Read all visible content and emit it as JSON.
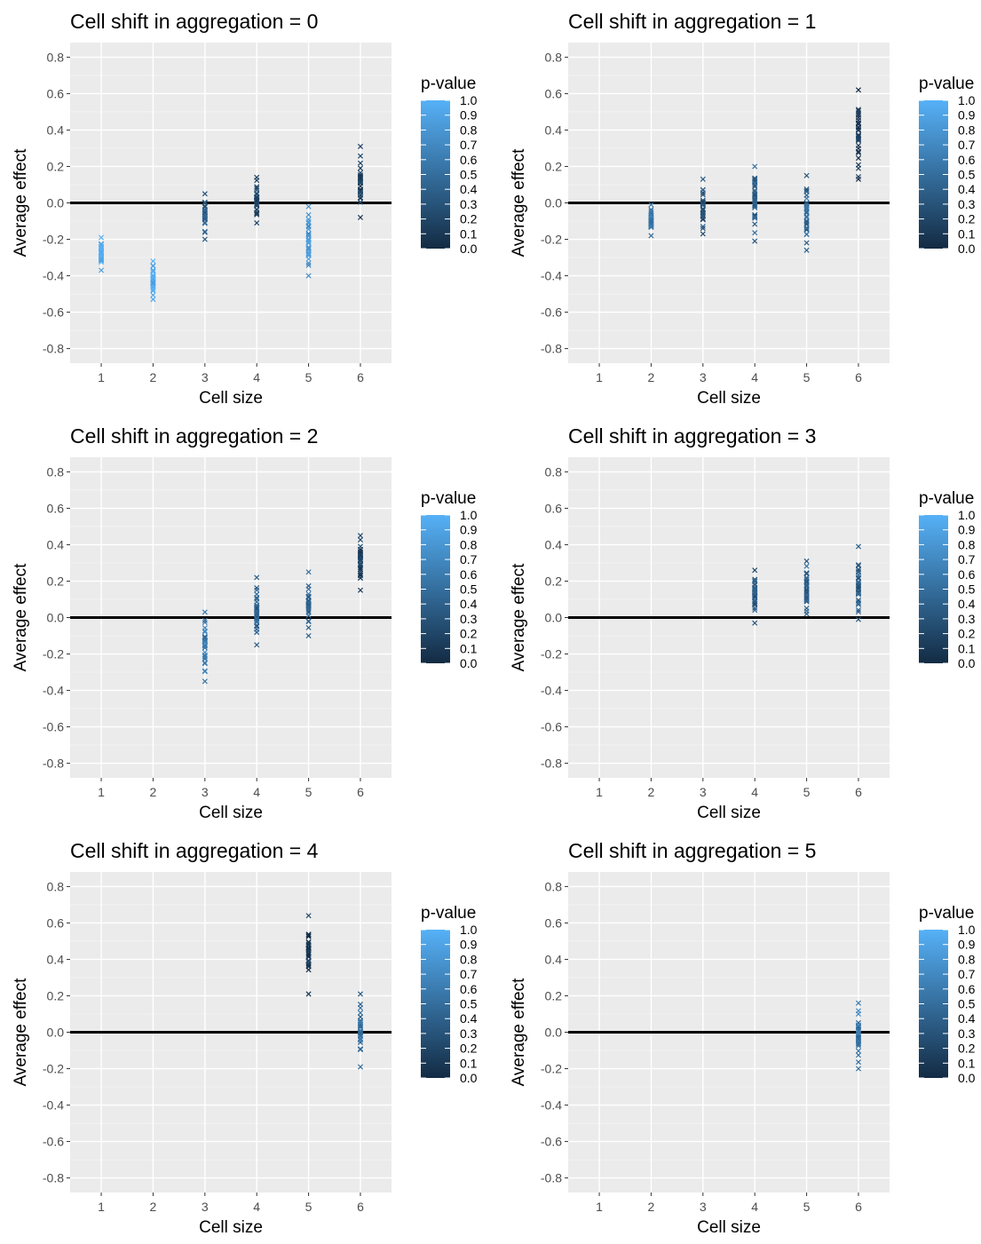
{
  "legend": {
    "title": "p-value",
    "ticks": [
      "1.0",
      "0.9",
      "0.8",
      "0.7",
      "0.6",
      "0.5",
      "0.4",
      "0.3",
      "0.2",
      "0.1",
      "0.0"
    ],
    "color_low": "#132B43",
    "color_high": "#56B1F7"
  },
  "chart_data": [
    {
      "type": "scatter",
      "title": "Cell shift in aggregation = 0",
      "xlabel": "Cell size",
      "ylabel": "Average effect",
      "x_ticks": [
        "1",
        "2",
        "3",
        "4",
        "5",
        "6"
      ],
      "y_ticks": [
        "0.8",
        "0.6",
        "0.4",
        "0.2",
        "0.0",
        "-0.2",
        "-0.4",
        "-0.6",
        "-0.8"
      ],
      "xlim": [
        0.4,
        6.6
      ],
      "ylim": [
        -0.88,
        0.88
      ],
      "hline": 0,
      "groups": [
        {
          "x": 1,
          "min": -0.37,
          "max": -0.19,
          "p": 0.95
        },
        {
          "x": 2,
          "min": -0.53,
          "max": -0.32,
          "p": 0.97
        },
        {
          "x": 3,
          "min": -0.2,
          "max": 0.05,
          "p": 0.4
        },
        {
          "x": 4,
          "min": -0.11,
          "max": 0.14,
          "p": 0.25
        },
        {
          "x": 5,
          "min": -0.4,
          "max": -0.02,
          "p": 0.8
        },
        {
          "x": 6,
          "min": -0.08,
          "max": 0.31,
          "p": 0.15
        }
      ]
    },
    {
      "type": "scatter",
      "title": "Cell shift in aggregation = 1",
      "xlabel": "Cell size",
      "ylabel": "Average effect",
      "x_ticks": [
        "1",
        "2",
        "3",
        "4",
        "5",
        "6"
      ],
      "y_ticks": [
        "0.8",
        "0.6",
        "0.4",
        "0.2",
        "0.0",
        "-0.2",
        "-0.4",
        "-0.6",
        "-0.8"
      ],
      "xlim": [
        0.4,
        6.6
      ],
      "ylim": [
        -0.88,
        0.88
      ],
      "hline": 0,
      "groups": [
        {
          "x": 2,
          "min": -0.18,
          "max": -0.01,
          "p": 0.55
        },
        {
          "x": 3,
          "min": -0.17,
          "max": 0.13,
          "p": 0.3
        },
        {
          "x": 4,
          "min": -0.21,
          "max": 0.2,
          "p": 0.4
        },
        {
          "x": 5,
          "min": -0.26,
          "max": 0.15,
          "p": 0.45
        },
        {
          "x": 6,
          "min": 0.13,
          "max": 0.62,
          "p": 0.08
        }
      ]
    },
    {
      "type": "scatter",
      "title": "Cell shift in aggregation = 2",
      "xlabel": "Cell size",
      "ylabel": "Average effect",
      "x_ticks": [
        "1",
        "2",
        "3",
        "4",
        "5",
        "6"
      ],
      "y_ticks": [
        "0.8",
        "0.6",
        "0.4",
        "0.2",
        "0.0",
        "-0.2",
        "-0.4",
        "-0.6",
        "-0.8"
      ],
      "xlim": [
        0.4,
        6.6
      ],
      "ylim": [
        -0.88,
        0.88
      ],
      "hline": 0,
      "groups": [
        {
          "x": 3,
          "min": -0.35,
          "max": 0.03,
          "p": 0.6
        },
        {
          "x": 4,
          "min": -0.15,
          "max": 0.22,
          "p": 0.4
        },
        {
          "x": 5,
          "min": -0.1,
          "max": 0.25,
          "p": 0.45
        },
        {
          "x": 6,
          "min": 0.15,
          "max": 0.45,
          "p": 0.15
        }
      ]
    },
    {
      "type": "scatter",
      "title": "Cell shift in aggregation = 3",
      "xlabel": "Cell size",
      "ylabel": "Average effect",
      "x_ticks": [
        "1",
        "2",
        "3",
        "4",
        "5",
        "6"
      ],
      "y_ticks": [
        "0.8",
        "0.6",
        "0.4",
        "0.2",
        "0.0",
        "-0.2",
        "-0.4",
        "-0.6",
        "-0.8"
      ],
      "xlim": [
        0.4,
        6.6
      ],
      "ylim": [
        -0.88,
        0.88
      ],
      "hline": 0,
      "groups": [
        {
          "x": 4,
          "min": -0.03,
          "max": 0.26,
          "p": 0.35
        },
        {
          "x": 5,
          "min": 0.02,
          "max": 0.31,
          "p": 0.4
        },
        {
          "x": 6,
          "min": -0.01,
          "max": 0.39,
          "p": 0.4
        }
      ]
    },
    {
      "type": "scatter",
      "title": "Cell shift in aggregation = 4",
      "xlabel": "Cell size",
      "ylabel": "Average effect",
      "x_ticks": [
        "1",
        "2",
        "3",
        "4",
        "5",
        "6"
      ],
      "y_ticks": [
        "0.8",
        "0.6",
        "0.4",
        "0.2",
        "0.0",
        "-0.2",
        "-0.4",
        "-0.6",
        "-0.8"
      ],
      "xlim": [
        0.4,
        6.6
      ],
      "ylim": [
        -0.88,
        0.88
      ],
      "hline": 0,
      "groups": [
        {
          "x": 5,
          "min": 0.21,
          "max": 0.64,
          "p": 0.1
        },
        {
          "x": 6,
          "min": -0.19,
          "max": 0.21,
          "p": 0.5
        }
      ]
    },
    {
      "type": "scatter",
      "title": "Cell shift in aggregation = 5",
      "xlabel": "Cell size",
      "ylabel": "Average effect",
      "x_ticks": [
        "1",
        "2",
        "3",
        "4",
        "5",
        "6"
      ],
      "y_ticks": [
        "0.8",
        "0.6",
        "0.4",
        "0.2",
        "0.0",
        "-0.2",
        "-0.4",
        "-0.6",
        "-0.8"
      ],
      "xlim": [
        0.4,
        6.6
      ],
      "ylim": [
        -0.88,
        0.88
      ],
      "hline": 0,
      "groups": [
        {
          "x": 6,
          "min": -0.2,
          "max": 0.16,
          "p": 0.55
        }
      ]
    }
  ]
}
